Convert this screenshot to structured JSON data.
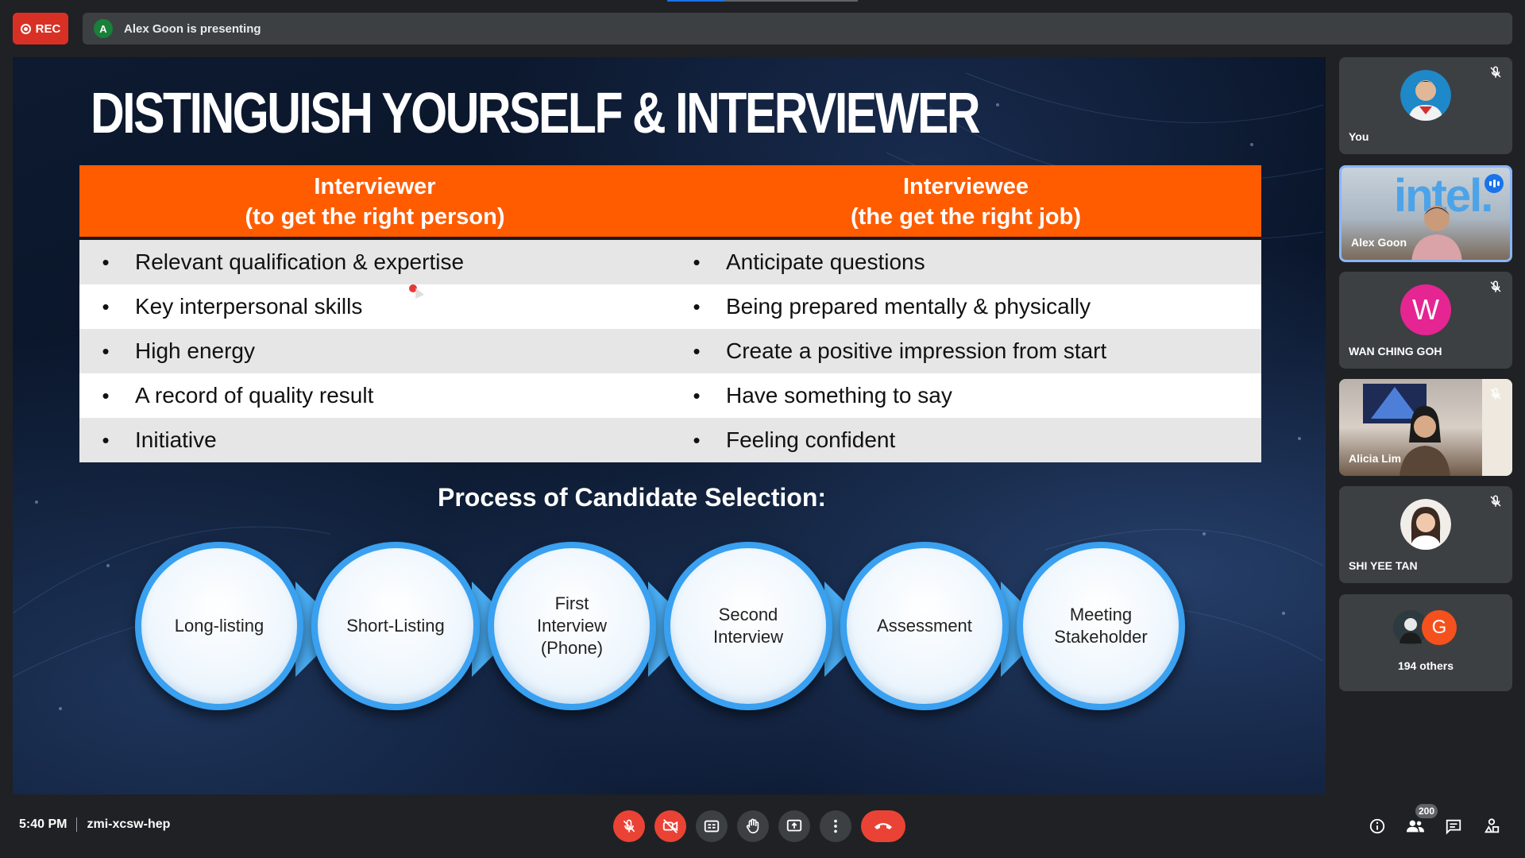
{
  "recording": {
    "label": "REC"
  },
  "presenting": {
    "avatar_initial": "A",
    "text": "Alex Goon is presenting"
  },
  "presentation_progress": 0.3,
  "slide": {
    "title": "DISTINGUISH YOURSELF & INTERVIEWER",
    "table": {
      "headers": [
        {
          "line1": "Interviewer",
          "line2": "(to get the right person)"
        },
        {
          "line1": "Interviewee",
          "line2": "(the get the right job)"
        }
      ],
      "bullet": "•",
      "rows": [
        [
          "Relevant qualification & expertise",
          "Anticipate questions"
        ],
        [
          "Key interpersonal skills",
          "Being prepared mentally & physically"
        ],
        [
          "High energy",
          "Create a positive impression from start"
        ],
        [
          "A record of quality result",
          "Have something to say"
        ],
        [
          "Initiative",
          "Feeling confident"
        ]
      ]
    },
    "process_title": "Process of Candidate Selection:",
    "process_steps": [
      "Long-listing",
      "Short-Listing",
      "First\nInterview\n(Phone)",
      "Second\nInterview",
      "Assessment",
      "Meeting\nStakeholder"
    ]
  },
  "participants": [
    {
      "name": "You",
      "muted": true
    },
    {
      "name": "Alex Goon",
      "speaking": true,
      "background_text": "intel."
    },
    {
      "name": "WAN CHING GOH",
      "initial": "W",
      "avatar_color": "#e52592",
      "muted": true
    },
    {
      "name": "Alicia Lim",
      "muted": true
    },
    {
      "name": "SHI YEE TAN",
      "muted": true
    },
    {
      "others_label": "194 others",
      "initial": "G",
      "avatar_color": "#f4511e"
    }
  ],
  "meeting": {
    "time": "5:40 PM",
    "code": "zmi-xcsw-hep"
  },
  "controls": {
    "mic": "mic-off-icon",
    "camera": "camera-off-icon",
    "captions": "captions-icon",
    "raise_hand": "hand-icon",
    "present": "present-screen-icon",
    "more": "more-vert-icon",
    "end_call": "end-call-icon"
  },
  "right_controls": {
    "people_count": "200"
  },
  "colors": {
    "accent": "#1a73e8",
    "danger": "#ea4335",
    "slide_header": "#ff5c00",
    "circle_border": "#3aa0f0"
  }
}
